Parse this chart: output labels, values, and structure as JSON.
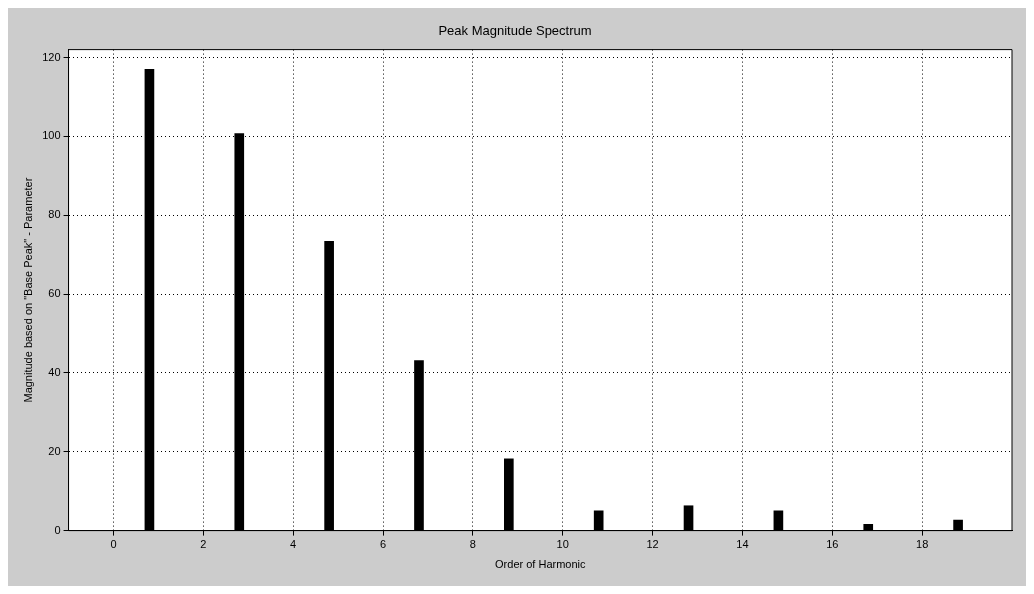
{
  "chart_data": {
    "type": "bar",
    "title": "Peak Magnitude Spectrum",
    "xlabel": "Order of Harmonic",
    "ylabel": "Magnitude based on \"Base Peak\" - Parameter",
    "x": [
      0.8,
      2.8,
      4.8,
      6.8,
      8.8,
      10.8,
      12.8,
      14.8,
      16.8,
      18.8
    ],
    "values": [
      117,
      100.7,
      73.4,
      43.1,
      18.2,
      5.0,
      6.3,
      5.0,
      1.6,
      2.7
    ],
    "color": "#000000",
    "xlim": [
      -1,
      20
    ],
    "xticks": [
      0,
      2,
      4,
      6,
      8,
      10,
      12,
      14,
      16,
      18
    ],
    "ylim": [
      0,
      122
    ],
    "yticks": [
      0,
      20,
      40,
      60,
      80,
      100,
      120
    ],
    "grid": true
  }
}
